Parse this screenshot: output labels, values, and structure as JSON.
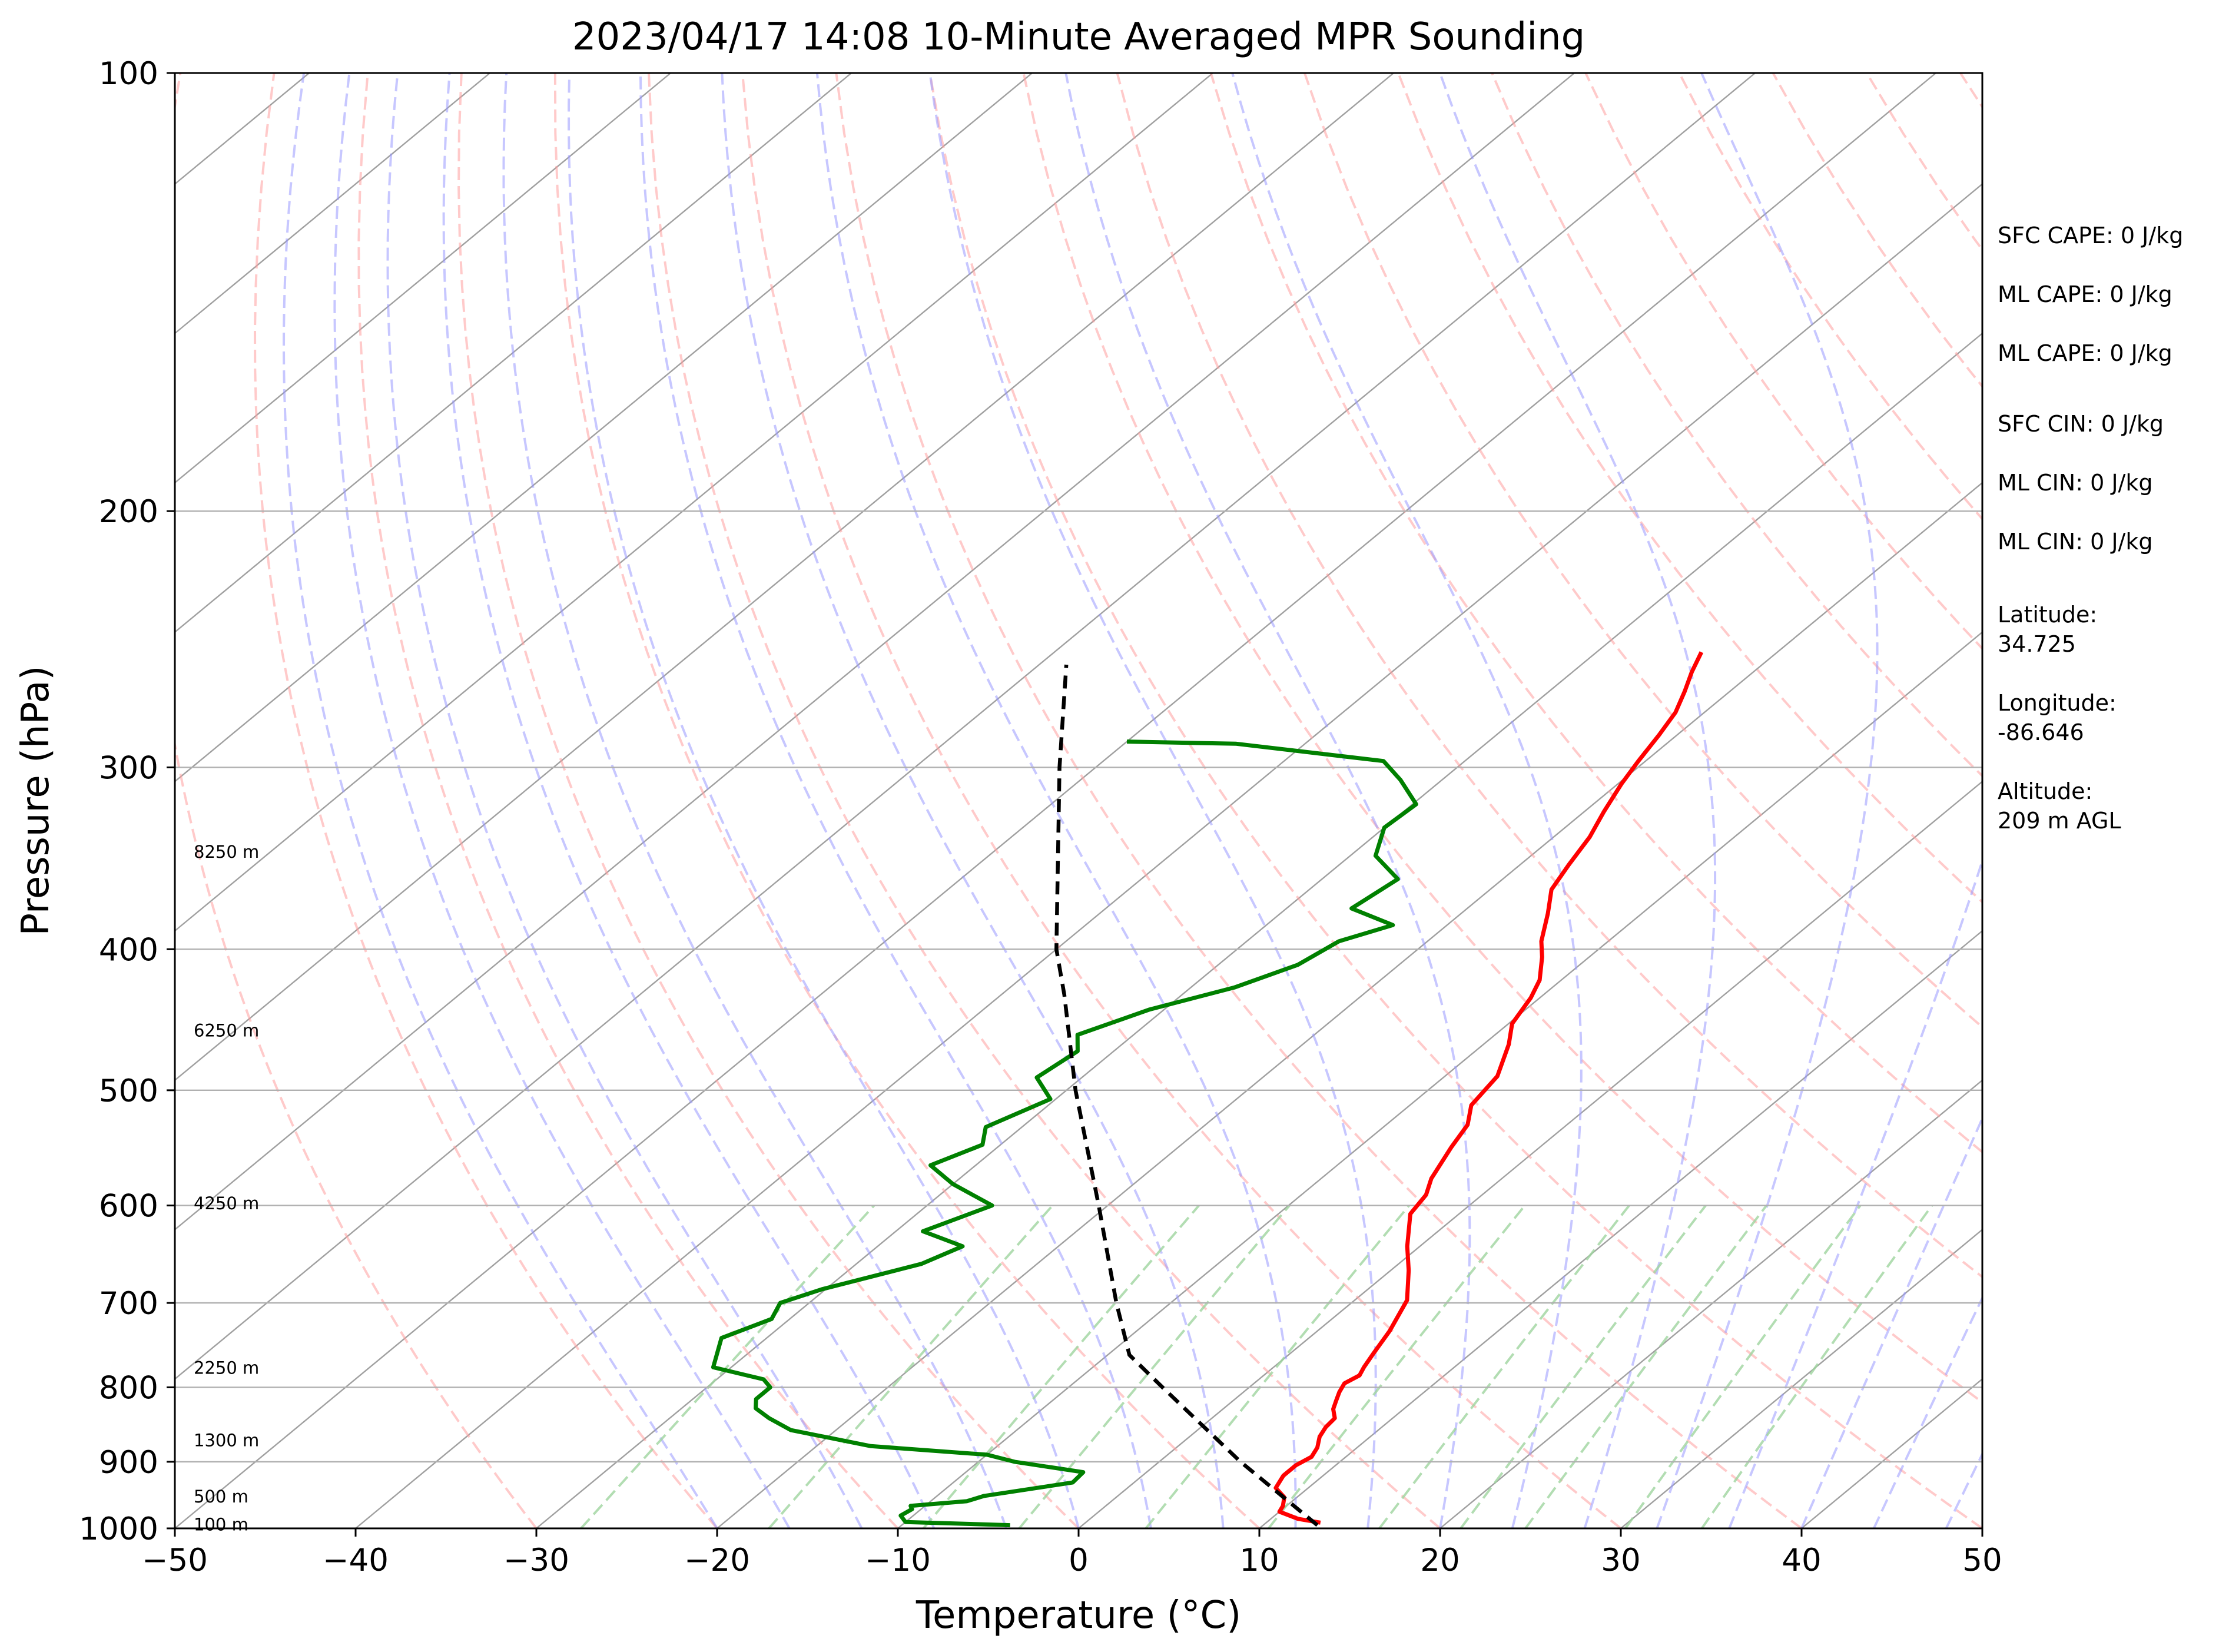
{
  "chart_data": {
    "type": "line",
    "chart_kind": "skew-T log-P sounding",
    "title": "2023/04/17 14:08 10-Minute Averaged MPR Sounding",
    "xlabel": "Temperature (°C)",
    "ylabel": "Pressure (hPa)",
    "xlim": [
      -50,
      50
    ],
    "ylim": [
      1000,
      100
    ],
    "y_scale": "log",
    "x_ticks": [
      -50,
      -40,
      -30,
      -20,
      -10,
      0,
      10,
      20,
      30,
      40,
      50
    ],
    "x_tick_labels": [
      "−50",
      "−40",
      "−30",
      "−20",
      "−10",
      "0",
      "10",
      "20",
      "30",
      "40",
      "50"
    ],
    "y_ticks": [
      1000,
      900,
      800,
      700,
      600,
      500,
      400,
      300,
      200,
      100
    ],
    "y_tick_labels": [
      "1000",
      "900",
      "800",
      "700",
      "600",
      "500",
      "400",
      "300",
      "200",
      "100"
    ],
    "grid": "horizontal isobars",
    "height_labels": [
      {
        "text": "100 m",
        "pressure": 994
      },
      {
        "text": "500 m",
        "pressure": 951
      },
      {
        "text": "1300 m",
        "pressure": 870
      },
      {
        "text": "2250 m",
        "pressure": 776
      },
      {
        "text": "4250 m",
        "pressure": 598
      },
      {
        "text": "6250 m",
        "pressure": 455
      },
      {
        "text": "8250 m",
        "pressure": 343
      }
    ],
    "series": [
      {
        "role": "temperature",
        "color": "#ff0000",
        "points": [
          {
            "p": 991,
            "t": 13.0
          },
          {
            "p": 985,
            "t": 11.5
          },
          {
            "p": 974,
            "t": 10.0
          },
          {
            "p": 965,
            "t": 9.8
          },
          {
            "p": 952,
            "t": 9.3
          },
          {
            "p": 938,
            "t": 8.2
          },
          {
            "p": 920,
            "t": 7.8
          },
          {
            "p": 905,
            "t": 7.8
          },
          {
            "p": 893,
            "t": 8.1
          },
          {
            "p": 880,
            "t": 7.8
          },
          {
            "p": 865,
            "t": 7.2
          },
          {
            "p": 852,
            "t": 6.9
          },
          {
            "p": 840,
            "t": 6.8
          },
          {
            "p": 828,
            "t": 6.1
          },
          {
            "p": 817,
            "t": 5.7
          },
          {
            "p": 806,
            "t": 5.3
          },
          {
            "p": 795,
            "t": 5.0
          },
          {
            "p": 785,
            "t": 5.3
          },
          {
            "p": 775,
            "t": 5.0
          },
          {
            "p": 758,
            "t": 4.6
          },
          {
            "p": 732,
            "t": 4.0
          },
          {
            "p": 697,
            "t": 2.9
          },
          {
            "p": 665,
            "t": 1.0
          },
          {
            "p": 640,
            "t": -0.7
          },
          {
            "p": 608,
            "t": -2.7
          },
          {
            "p": 590,
            "t": -3.1
          },
          {
            "p": 575,
            "t": -3.9
          },
          {
            "p": 547,
            "t": -4.9
          },
          {
            "p": 528,
            "t": -5.5
          },
          {
            "p": 512,
            "t": -6.6
          },
          {
            "p": 489,
            "t": -7.1
          },
          {
            "p": 465,
            "t": -8.6
          },
          {
            "p": 450,
            "t": -9.8
          },
          {
            "p": 432,
            "t": -10.5
          },
          {
            "p": 420,
            "t": -11.2
          },
          {
            "p": 405,
            "t": -12.6
          },
          {
            "p": 395,
            "t": -13.7
          },
          {
            "p": 378,
            "t": -15.2
          },
          {
            "p": 364,
            "t": -16.6
          },
          {
            "p": 350,
            "t": -17.3
          },
          {
            "p": 335,
            "t": -18.0
          },
          {
            "p": 322,
            "t": -18.9
          },
          {
            "p": 308,
            "t": -19.8
          },
          {
            "p": 297,
            "t": -20.4
          },
          {
            "p": 285,
            "t": -21.0
          },
          {
            "p": 275,
            "t": -21.6
          },
          {
            "p": 266,
            "t": -22.5
          },
          {
            "p": 258,
            "t": -23.4
          },
          {
            "p": 250,
            "t": -24.2
          }
        ]
      },
      {
        "role": "dewpoint",
        "color": "#008000",
        "points": [
          {
            "p": 995,
            "t": -4.0
          },
          {
            "p": 990,
            "t": -10.0
          },
          {
            "p": 980,
            "t": -10.7
          },
          {
            "p": 970,
            "t": -10.5
          },
          {
            "p": 965,
            "t": -10.8
          },
          {
            "p": 958,
            "t": -8.0
          },
          {
            "p": 950,
            "t": -7.4
          },
          {
            "p": 930,
            "t": -3.4
          },
          {
            "p": 915,
            "t": -3.5
          },
          {
            "p": 900,
            "t": -8.0
          },
          {
            "p": 890,
            "t": -10.0
          },
          {
            "p": 878,
            "t": -17.0
          },
          {
            "p": 856,
            "t": -22.5
          },
          {
            "p": 840,
            "t": -24.5
          },
          {
            "p": 827,
            "t": -25.9
          },
          {
            "p": 815,
            "t": -26.5
          },
          {
            "p": 800,
            "t": -26.5
          },
          {
            "p": 790,
            "t": -27.4
          },
          {
            "p": 775,
            "t": -31.0
          },
          {
            "p": 740,
            "t": -32.5
          },
          {
            "p": 718,
            "t": -31.0
          },
          {
            "p": 700,
            "t": -31.6
          },
          {
            "p": 685,
            "t": -30.2
          },
          {
            "p": 658,
            "t": -26.4
          },
          {
            "p": 640,
            "t": -25.3
          },
          {
            "p": 625,
            "t": -28.5
          },
          {
            "p": 600,
            "t": -26.4
          },
          {
            "p": 580,
            "t": -30.0
          },
          {
            "p": 563,
            "t": -32.5
          },
          {
            "p": 545,
            "t": -31.0
          },
          {
            "p": 530,
            "t": -32.0
          },
          {
            "p": 507,
            "t": -30.3
          },
          {
            "p": 490,
            "t": -32.5
          },
          {
            "p": 470,
            "t": -32.0
          },
          {
            "p": 458,
            "t": -33.1
          },
          {
            "p": 440,
            "t": -30.8
          },
          {
            "p": 425,
            "t": -27.6
          },
          {
            "p": 410,
            "t": -25.6
          },
          {
            "p": 395,
            "t": -24.9
          },
          {
            "p": 385,
            "t": -23.0
          },
          {
            "p": 375,
            "t": -26.4
          },
          {
            "p": 358,
            "t": -25.8
          },
          {
            "p": 345,
            "t": -28.6
          },
          {
            "p": 330,
            "t": -30.0
          },
          {
            "p": 318,
            "t": -29.8
          },
          {
            "p": 306,
            "t": -32.3
          },
          {
            "p": 297,
            "t": -34.5
          },
          {
            "p": 289,
            "t": -43.8
          },
          {
            "p": 288,
            "t": -50.0
          }
        ]
      },
      {
        "role": "parcel profile",
        "color": "#000000",
        "style": "dashed",
        "points": [
          {
            "p": 995,
            "t": 13.0
          },
          {
            "p": 900,
            "t": 4.5
          },
          {
            "p": 800,
            "t": -4.8
          },
          {
            "p": 760,
            "t": -8.8
          },
          {
            "p": 700,
            "t": -13.0
          },
          {
            "p": 600,
            "t": -20.5
          },
          {
            "p": 500,
            "t": -29.5
          },
          {
            "p": 430,
            "t": -36.5
          },
          {
            "p": 400,
            "t": -40.0
          },
          {
            "p": 300,
            "t": -52.0
          },
          {
            "p": 255,
            "t": -58.5
          }
        ]
      }
    ],
    "background_lines": {
      "isotherms_color": "#a0a0a0",
      "dry_adiabats_color": "#ff9e9e",
      "moist_adiabats_color": "#9999ff",
      "mixing_ratio_color": "#9fd49f"
    }
  },
  "info_panel": {
    "sfc_cape": "SFC CAPE: 0 J/kg",
    "ml_cape_1": "ML CAPE: 0 J/kg",
    "ml_cape_2": "ML CAPE: 0 J/kg",
    "sfc_cin": "SFC CIN: 0 J/kg",
    "ml_cin_1": "ML CIN: 0 J/kg",
    "ml_cin_2": "ML CIN: 0 J/kg",
    "latitude_label": "Latitude:",
    "latitude_value": "34.725",
    "longitude_label": "Longitude:",
    "longitude_value": "-86.646",
    "altitude_label": "Altitude:",
    "altitude_value": "209 m AGL"
  }
}
